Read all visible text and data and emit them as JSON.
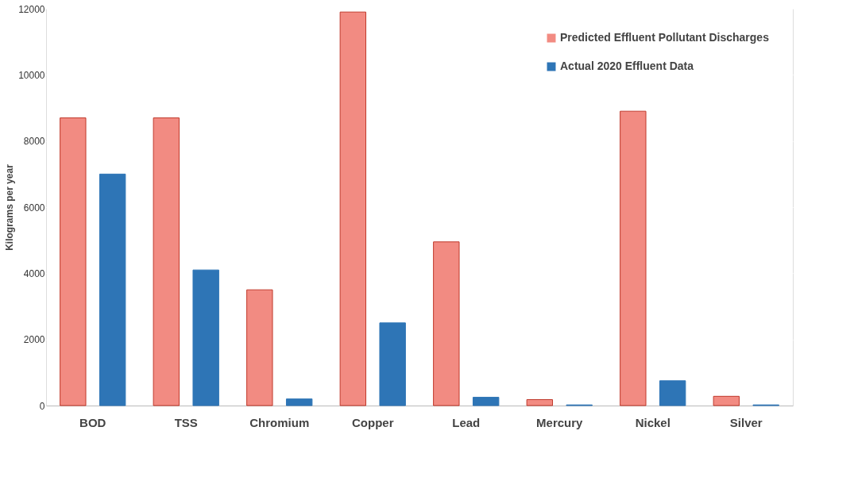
{
  "chart_data": {
    "type": "bar",
    "ylabel": "Kilograms per year",
    "categories": [
      "BOD",
      "TSS",
      "Chromium",
      "Copper",
      "Lead",
      "Mercury",
      "Nickel",
      "Silver"
    ],
    "series": [
      {
        "name": "Predicted Effluent Pollutant Discharges",
        "color": "#f28b82",
        "values": [
          8700,
          8700,
          3500,
          11900,
          4950,
          180,
          8900,
          280
        ]
      },
      {
        "name": "Actual 2020 Effluent Data",
        "color": "#2e75b6",
        "values": [
          7000,
          4100,
          200,
          2500,
          250,
          20,
          750,
          20
        ]
      }
    ],
    "ylim": [
      0,
      12000
    ],
    "yticks": [
      0,
      2000,
      4000,
      6000,
      8000,
      10000,
      12000
    ],
    "grid": "y",
    "legend": "top right"
  }
}
